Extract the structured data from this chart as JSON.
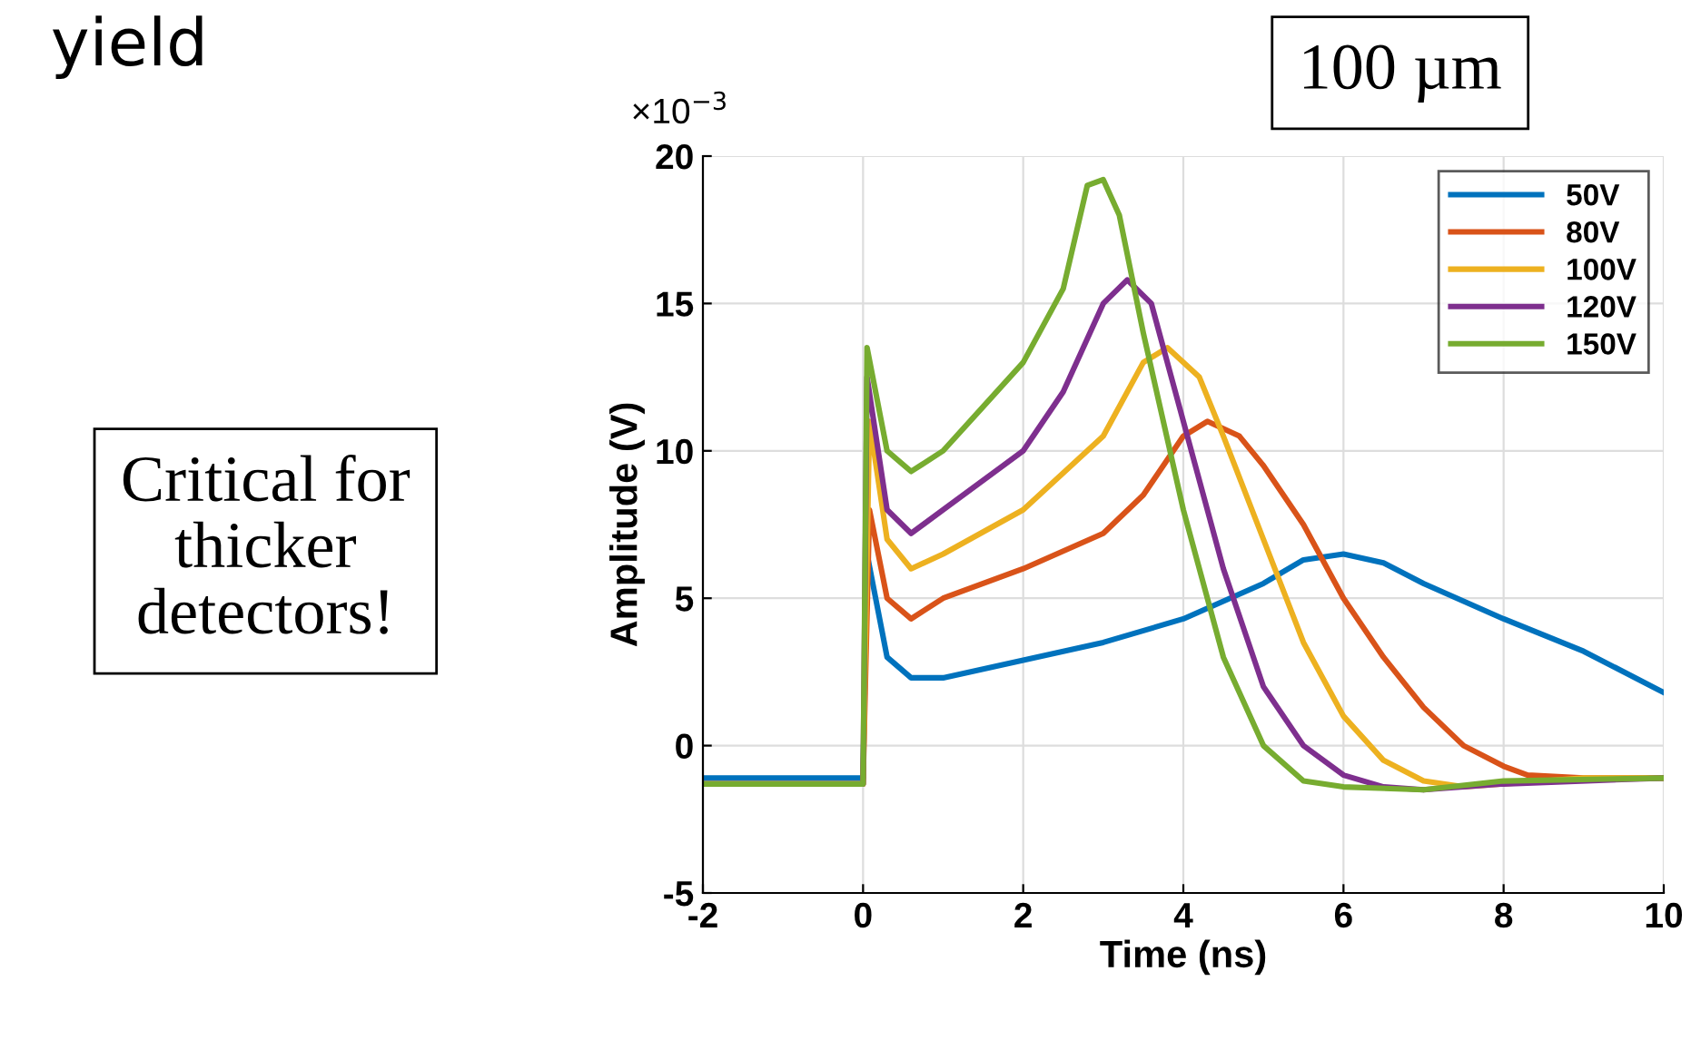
{
  "chart_data": {
    "type": "line",
    "xlabel": "Time (ns)",
    "ylabel": "Amplitude (V)",
    "xlim": [
      -2,
      10
    ],
    "xticks": [
      -2,
      0,
      2,
      4,
      6,
      8,
      10
    ],
    "ylim": [
      -5,
      20
    ],
    "yticks": [
      -5,
      0,
      5,
      10,
      15,
      20
    ],
    "grid": true,
    "legend": "top right",
    "annotations": [
      "×10$^{−3}$",
      "100 µm",
      "Critical for\nthicker\ndetectors!",
      "yield"
    ],
    "series": [
      {
        "name": "50V",
        "color": "#0072bd",
        "x": [
          -2,
          0,
          0.05,
          0.3,
          0.6,
          1,
          2,
          3,
          4,
          5,
          5.5,
          6,
          6.5,
          7,
          8,
          9,
          10
        ],
        "values": [
          -1.1,
          -1.1,
          6.5,
          3.0,
          2.3,
          2.3,
          2.9,
          3.5,
          4.3,
          5.5,
          6.3,
          6.5,
          6.2,
          5.5,
          4.3,
          3.2,
          1.8
        ]
      },
      {
        "name": "80V",
        "color": "#d95319",
        "x": [
          -2,
          0,
          0.08,
          0.3,
          0.6,
          1,
          2,
          3,
          3.5,
          4,
          4.3,
          4.7,
          5,
          5.5,
          6,
          6.5,
          7,
          7.5,
          8,
          8.3,
          9,
          10
        ],
        "values": [
          -1.3,
          -1.3,
          8,
          5,
          4.3,
          5,
          6,
          7.2,
          8.5,
          10.5,
          11,
          10.5,
          9.5,
          7.5,
          5,
          3,
          1.3,
          0,
          -0.7,
          -1.0,
          -1.1,
          -1.1
        ]
      },
      {
        "name": "100V",
        "color": "#edb120",
        "x": [
          -2,
          0,
          0.08,
          0.3,
          0.6,
          1,
          2,
          3,
          3.5,
          3.8,
          4.2,
          4.5,
          5,
          5.5,
          6,
          6.5,
          7,
          7.5,
          8,
          9,
          10
        ],
        "values": [
          -1.3,
          -1.3,
          11,
          7,
          6,
          6.5,
          8,
          10.5,
          13,
          13.5,
          12.5,
          10.5,
          7,
          3.5,
          1,
          -0.5,
          -1.2,
          -1.4,
          -1.3,
          -1.1,
          -1.1
        ]
      },
      {
        "name": "120V",
        "color": "#7e2f8e",
        "x": [
          -2,
          0,
          0.05,
          0.3,
          0.6,
          1,
          2,
          2.5,
          3,
          3.3,
          3.6,
          4,
          4.5,
          5,
          5.5,
          6,
          6.5,
          7,
          8,
          10
        ],
        "values": [
          -1.3,
          -1.3,
          12.5,
          8,
          7.2,
          8,
          10,
          12,
          15,
          15.8,
          15,
          11,
          6,
          2,
          0,
          -1.0,
          -1.4,
          -1.5,
          -1.3,
          -1.1
        ]
      },
      {
        "name": "150V",
        "color": "#77ac30",
        "x": [
          -2,
          0,
          0.05,
          0.3,
          0.6,
          1,
          1.5,
          2,
          2.5,
          2.8,
          3.0,
          3.2,
          3.5,
          4,
          4.5,
          5,
          5.5,
          6,
          7,
          8,
          10
        ],
        "values": [
          -1.3,
          -1.3,
          13.5,
          10,
          9.3,
          10,
          11.5,
          13,
          15.5,
          19,
          19.2,
          18,
          14,
          8,
          3,
          0,
          -1.2,
          -1.4,
          -1.5,
          -1.2,
          -1.1
        ]
      }
    ]
  }
}
